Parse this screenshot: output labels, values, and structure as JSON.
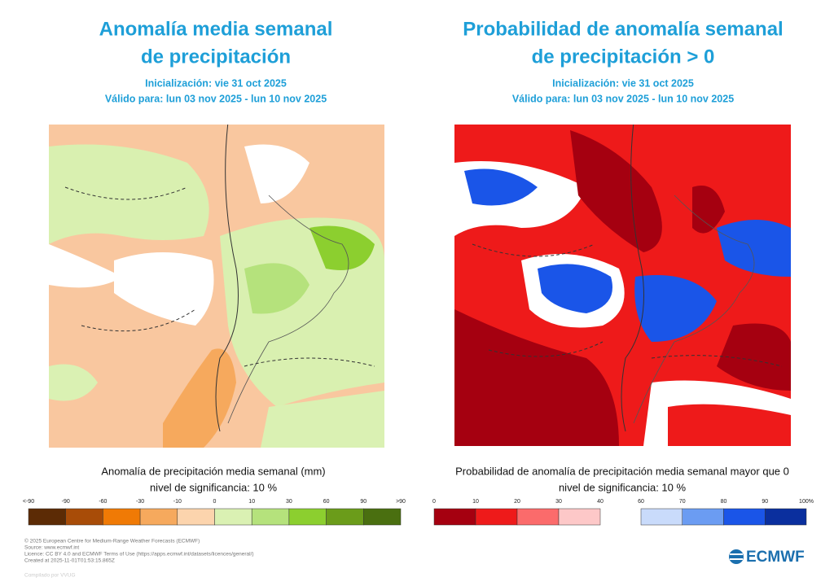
{
  "left_panel": {
    "title": [
      "Anomalía media semanal",
      "de precipitación"
    ],
    "initialization": "Inicialización: vie 31 oct 2025",
    "valid": "Válido para: lun 03 nov 2025 - lun 10 nov 2025",
    "caption": "Anomalía de precipitación media semanal (mm)",
    "significance": "nivel de significancia: 10 %",
    "colorbar": {
      "groups": [
        {
          "labels": [
            "<-90",
            "-90",
            "-60",
            "-30",
            "-10",
            "0",
            "10",
            "30",
            "60",
            "90",
            ">90"
          ],
          "colors": [
            "#5c2b05",
            "#a84c08",
            "#f07a05",
            "#f6a95d",
            "#fcd4ad",
            "#daf1b3",
            "#b5e27c",
            "#8ccf2f",
            "#6b9c1a",
            "#4a6f10"
          ]
        }
      ]
    }
  },
  "right_panel": {
    "title": [
      "Probabilidad de anomalía semanal",
      "de precipitación > 0"
    ],
    "initialization": "Inicialización: vie 31 oct 2025",
    "valid": "Válido para: lun 03 nov 2025 - lun 10 nov 2025",
    "caption": "Probabilidad de anomalía de precipitación media semanal mayor que 0",
    "significance": "nivel de significancia: 10 %",
    "colorbar": {
      "groups": [
        {
          "labels": [
            "0",
            "10",
            "20",
            "30",
            "40"
          ],
          "colors": [
            "#a50010",
            "#ee1a1a",
            "#fb6b6b",
            "#fdc8c8"
          ]
        },
        {
          "labels": [
            "60",
            "70",
            "80",
            "90",
            "100%"
          ],
          "colors": [
            "#c9dbfb",
            "#6b9cf2",
            "#1a55e8",
            "#0a2f9e"
          ]
        }
      ]
    }
  },
  "footer": {
    "credits": [
      "© 2025 European Centre for Medium-Range Weather Forecasts (ECMWF)",
      "Source: www.ecmwf.int",
      "Licence: CC BY 4.0 and ECMWF Terms of Use (https://apps.ecmwf.int/datasets/licences/general/)",
      "Created at 2025-11-01T01:53:15.865Z"
    ],
    "compiled": "Compilado por VVUG",
    "logo": "ECMWF"
  }
}
